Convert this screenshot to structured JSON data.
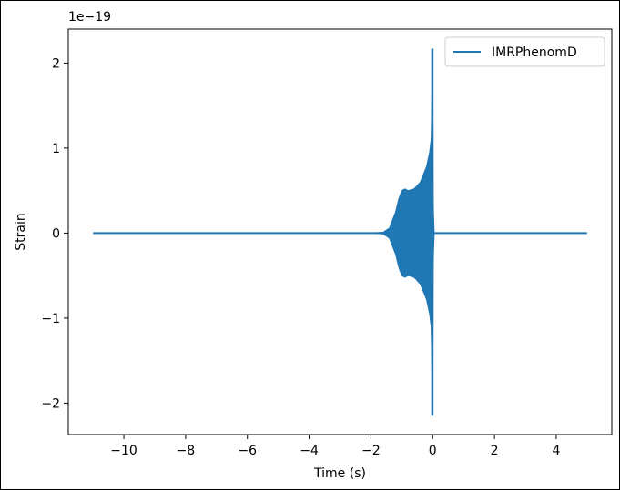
{
  "chart_data": {
    "type": "line",
    "title": "",
    "xlabel": "Time (s)",
    "ylabel": "Strain",
    "offset_label": "1e−19",
    "xlim": [
      -11.8,
      5.8
    ],
    "ylim": [
      -2.37,
      2.4
    ],
    "x_ticks": [
      -10,
      -8,
      -6,
      -4,
      -2,
      0,
      2,
      4
    ],
    "x_tick_labels": [
      "−10",
      "−8",
      "−6",
      "−4",
      "−2",
      "0",
      "2",
      "4"
    ],
    "y_ticks": [
      -2,
      -1,
      0,
      1,
      2
    ],
    "y_tick_labels": [
      "−2",
      "−1",
      "0",
      "1",
      "2"
    ],
    "grid": false,
    "legend_position": "top-right",
    "series": [
      {
        "name": "IMRPhenomD",
        "color": "#1f77b4",
        "x": [
          -11,
          -2.0,
          -1.8,
          -1.6,
          -1.4,
          -1.2,
          -1.1,
          -1.0,
          -0.9,
          -0.8,
          -0.6,
          -0.4,
          -0.2,
          -0.1,
          -0.05,
          0.0,
          0.02,
          0.05,
          5.0
        ],
        "upper_envelope": [
          0,
          0,
          0.005,
          0.01,
          0.06,
          0.25,
          0.4,
          0.5,
          0.52,
          0.5,
          0.52,
          0.6,
          0.78,
          0.95,
          1.1,
          2.17,
          0.3,
          0,
          0
        ],
        "lower_envelope": [
          0,
          0,
          -0.005,
          -0.01,
          -0.06,
          -0.25,
          -0.4,
          -0.5,
          -0.52,
          -0.5,
          -0.52,
          -0.6,
          -0.78,
          -0.95,
          -1.1,
          -2.15,
          -0.3,
          0,
          0
        ]
      }
    ]
  }
}
